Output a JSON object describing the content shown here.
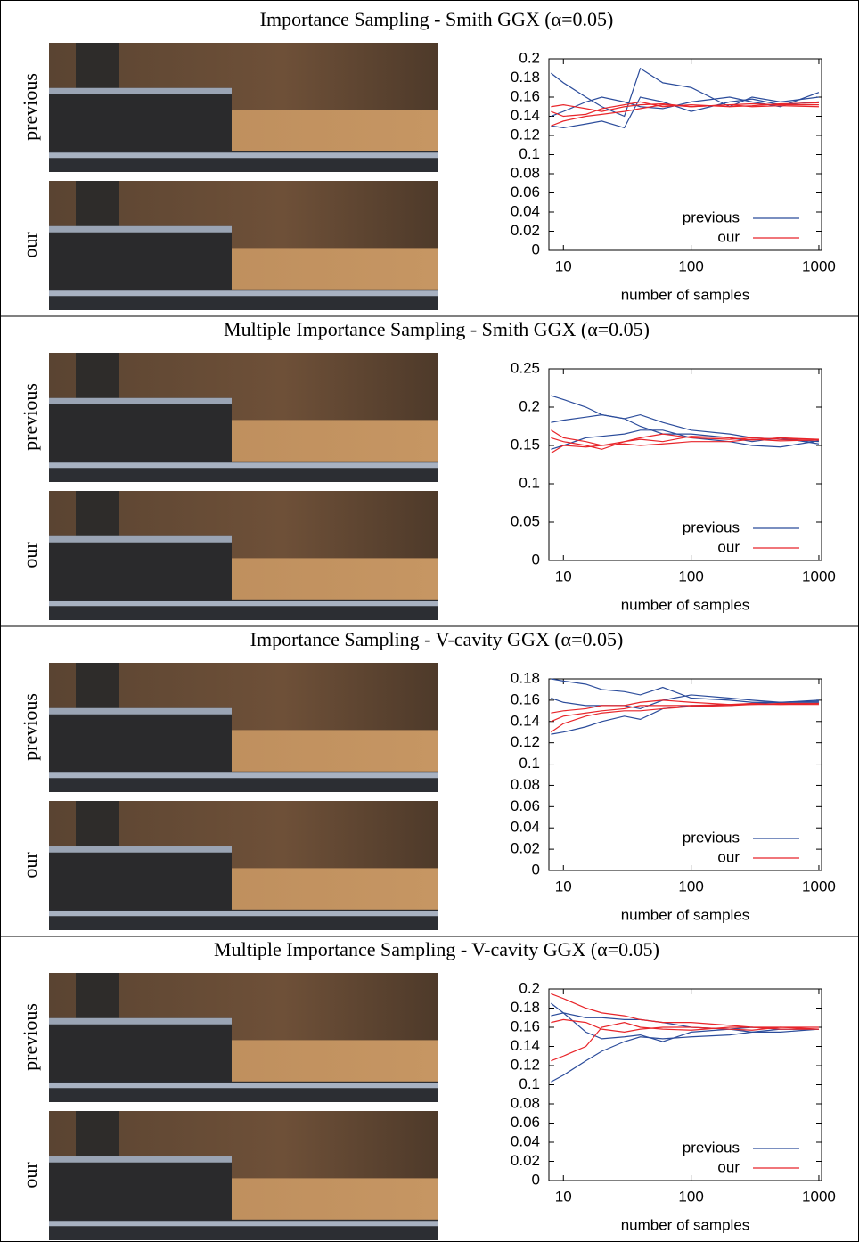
{
  "chart_data": [
    {
      "type": "line",
      "title": "Importance Sampling - Smith GGX (α=0.05)",
      "image_labels": [
        "previous",
        "our"
      ],
      "x_label": "number of samples",
      "log_x": true,
      "x": [
        8,
        10,
        15,
        20,
        30,
        40,
        60,
        100,
        200,
        300,
        500,
        1000
      ],
      "xlim": [
        7.7,
        1050
      ],
      "xticks": [
        10,
        100,
        1000
      ],
      "ylim": [
        0,
        0.2
      ],
      "yticks": [
        0,
        0.02,
        0.04,
        0.06,
        0.08,
        0.1,
        0.12,
        0.14,
        0.16,
        0.18,
        0.2
      ],
      "legend": "lower right",
      "series": [
        {
          "name": "previous",
          "color": "#2b4c9b",
          "runs": [
            [
              0.185,
              0.175,
              0.16,
              0.15,
              0.14,
              0.19,
              0.175,
              0.17,
              0.15,
              0.16,
              0.155,
              0.16
            ],
            [
              0.14,
              0.145,
              0.155,
              0.16,
              0.155,
              0.15,
              0.148,
              0.155,
              0.16,
              0.155,
              0.15,
              0.165
            ],
            [
              0.13,
              0.128,
              0.132,
              0.135,
              0.128,
              0.16,
              0.155,
              0.145,
              0.155,
              0.158,
              0.152,
              0.155
            ]
          ]
        },
        {
          "name": "our",
          "color": "#e8252a",
          "runs": [
            [
              0.15,
              0.152,
              0.148,
              0.145,
              0.15,
              0.152,
              0.153,
              0.15,
              0.152,
              0.153,
              0.152,
              0.152
            ],
            [
              0.145,
              0.14,
              0.142,
              0.148,
              0.152,
              0.155,
              0.15,
              0.152,
              0.15,
              0.151,
              0.153,
              0.154
            ],
            [
              0.13,
              0.135,
              0.14,
              0.142,
              0.145,
              0.148,
              0.152,
              0.15,
              0.152,
              0.15,
              0.151,
              0.15
            ]
          ]
        }
      ]
    },
    {
      "type": "line",
      "title": "Multiple Importance Sampling - Smith GGX (α=0.05)",
      "image_labels": [
        "previous",
        "our"
      ],
      "x_label": "number of samples",
      "log_x": true,
      "x": [
        8,
        10,
        15,
        20,
        30,
        40,
        60,
        100,
        200,
        300,
        500,
        1000
      ],
      "xlim": [
        7.7,
        1050
      ],
      "xticks": [
        10,
        100,
        1000
      ],
      "ylim": [
        0,
        0.25
      ],
      "yticks": [
        0,
        0.05,
        0.1,
        0.15,
        0.2,
        0.25
      ],
      "legend": "lower right",
      "series": [
        {
          "name": "previous",
          "color": "#2b4c9b",
          "runs": [
            [
              0.215,
              0.21,
              0.2,
              0.19,
              0.185,
              0.19,
              0.18,
              0.17,
              0.165,
              0.16,
              0.158,
              0.155
            ],
            [
              0.18,
              0.183,
              0.187,
              0.19,
              0.185,
              0.175,
              0.165,
              0.165,
              0.16,
              0.155,
              0.16,
              0.152
            ],
            [
              0.145,
              0.15,
              0.16,
              0.162,
              0.165,
              0.17,
              0.17,
              0.16,
              0.155,
              0.15,
              0.148,
              0.156
            ]
          ]
        },
        {
          "name": "our",
          "color": "#e8252a",
          "runs": [
            [
              0.17,
              0.16,
              0.155,
              0.15,
              0.155,
              0.16,
              0.165,
              0.16,
              0.158,
              0.16,
              0.158,
              0.158
            ],
            [
              0.16,
              0.155,
              0.15,
              0.145,
              0.155,
              0.158,
              0.155,
              0.162,
              0.16,
              0.157,
              0.16,
              0.158
            ],
            [
              0.14,
              0.15,
              0.148,
              0.15,
              0.152,
              0.15,
              0.152,
              0.155,
              0.155,
              0.158,
              0.156,
              0.157
            ]
          ]
        }
      ]
    },
    {
      "type": "line",
      "title": "Importance Sampling - V-cavity GGX (α=0.05)",
      "image_labels": [
        "previous",
        "our"
      ],
      "x_label": "number of samples",
      "log_x": true,
      "x": [
        8,
        10,
        15,
        20,
        30,
        40,
        60,
        100,
        200,
        300,
        500,
        1000
      ],
      "xlim": [
        7.7,
        1050
      ],
      "xticks": [
        10,
        100,
        1000
      ],
      "ylim": [
        0,
        0.18
      ],
      "yticks": [
        0,
        0.02,
        0.04,
        0.06,
        0.08,
        0.1,
        0.12,
        0.14,
        0.16,
        0.18
      ],
      "legend": "lower right",
      "series": [
        {
          "name": "previous",
          "color": "#2b4c9b",
          "runs": [
            [
              0.18,
              0.178,
              0.175,
              0.17,
              0.168,
              0.165,
              0.172,
              0.162,
              0.16,
              0.158,
              0.158,
              0.16
            ],
            [
              0.162,
              0.158,
              0.155,
              0.155,
              0.155,
              0.152,
              0.16,
              0.165,
              0.162,
              0.16,
              0.158,
              0.158
            ],
            [
              0.128,
              0.13,
              0.135,
              0.14,
              0.145,
              0.142,
              0.152,
              0.155,
              0.155,
              0.157,
              0.158,
              0.159
            ]
          ]
        },
        {
          "name": "our",
          "color": "#e8252a",
          "runs": [
            [
              0.148,
              0.15,
              0.152,
              0.155,
              0.155,
              0.158,
              0.16,
              0.158,
              0.156,
              0.157,
              0.156,
              0.156
            ],
            [
              0.14,
              0.145,
              0.148,
              0.15,
              0.152,
              0.155,
              0.155,
              0.155,
              0.156,
              0.156,
              0.157,
              0.157
            ],
            [
              0.13,
              0.138,
              0.145,
              0.148,
              0.15,
              0.15,
              0.152,
              0.154,
              0.155,
              0.156,
              0.156,
              0.157
            ]
          ]
        }
      ]
    },
    {
      "type": "line",
      "title": "Multiple Importance Sampling - V-cavity GGX (α=0.05)",
      "image_labels": [
        "previous",
        "our"
      ],
      "x_label": "number of samples",
      "log_x": true,
      "x": [
        8,
        10,
        15,
        20,
        30,
        40,
        60,
        100,
        200,
        300,
        500,
        1000
      ],
      "xlim": [
        7.7,
        1050
      ],
      "xticks": [
        10,
        100,
        1000
      ],
      "ylim": [
        0,
        0.2
      ],
      "yticks": [
        0,
        0.02,
        0.04,
        0.06,
        0.08,
        0.1,
        0.12,
        0.14,
        0.16,
        0.18,
        0.2
      ],
      "legend": "lower right",
      "series": [
        {
          "name": "previous",
          "color": "#2b4c9b",
          "runs": [
            [
              0.103,
              0.11,
              0.125,
              0.135,
              0.145,
              0.15,
              0.148,
              0.15,
              0.152,
              0.155,
              0.155,
              0.158
            ],
            [
              0.185,
              0.175,
              0.155,
              0.148,
              0.15,
              0.152,
              0.145,
              0.155,
              0.158,
              0.16,
              0.158,
              0.158
            ],
            [
              0.172,
              0.175,
              0.17,
              0.17,
              0.168,
              0.168,
              0.165,
              0.16,
              0.158,
              0.155,
              0.158,
              0.158
            ]
          ]
        },
        {
          "name": "our",
          "color": "#e8252a",
          "runs": [
            [
              0.195,
              0.19,
              0.18,
              0.175,
              0.172,
              0.168,
              0.165,
              0.165,
              0.162,
              0.16,
              0.16,
              0.16
            ],
            [
              0.125,
              0.13,
              0.14,
              0.16,
              0.165,
              0.16,
              0.158,
              0.157,
              0.16,
              0.16,
              0.158,
              0.158
            ],
            [
              0.165,
              0.168,
              0.165,
              0.158,
              0.155,
              0.158,
              0.16,
              0.16,
              0.158,
              0.157,
              0.16,
              0.158
            ]
          ]
        }
      ]
    }
  ]
}
